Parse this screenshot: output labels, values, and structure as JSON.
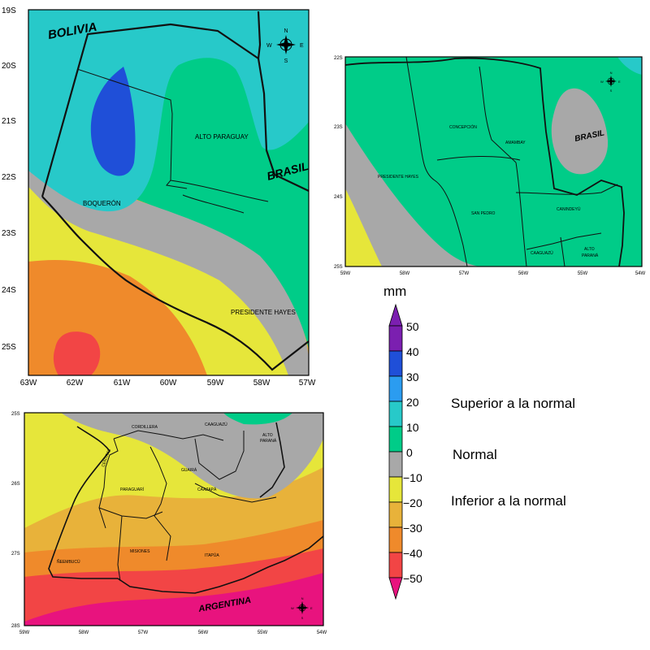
{
  "colors": {
    "plus40_50": "#7b1fb0",
    "plus30_40": "#1f4fd8",
    "plus20_30": "#2b9cf0",
    "plus10_20": "#27c9c9",
    "zero_10": "#00cc88",
    "minus10_0": "#a8a8a8",
    "minus20_10": "#e6e63a",
    "minus30_20": "#e8b23a",
    "minus40_30": "#ef8a2b",
    "minus50_40": "#f24545",
    "below_minus50": "#e8137e",
    "border": "#111111"
  },
  "map_chaco": {
    "lat_labels": [
      "19S",
      "20S",
      "21S",
      "22S",
      "23S",
      "24S",
      "25S"
    ],
    "lon_labels": [
      "63W",
      "62W",
      "61W",
      "60W",
      "59W",
      "58W",
      "57W"
    ],
    "countries": {
      "bolivia": "BOLIVIA",
      "brasil": "BRASIL"
    },
    "departments": {
      "alto_paraguay": "ALTO PARAGUAY",
      "boqueron": "BOQUERÓN",
      "presidente_hayes": "PRESIDENTE HAYES"
    },
    "compass": {
      "n": "N",
      "s": "S",
      "e": "E",
      "w": "W"
    }
  },
  "map_north": {
    "lat_labels": [
      "22S",
      "23S",
      "24S",
      "25S"
    ],
    "lon_labels": [
      "59W",
      "58W",
      "57W",
      "56W",
      "55W",
      "54W"
    ],
    "countries": {
      "brasil": "BRASIL"
    },
    "departments": {
      "concepcion": "CONCEPCIÓN",
      "amambay": "AMAMBAY",
      "presidente_hayes": "PRESIDENTE HAYES",
      "san_pedro": "SAN PEDRO",
      "canindeyu": "CANINDEYÚ",
      "caaguazu": "CAAGUAZÚ",
      "alto_parana_1": "ALTO",
      "alto_parana_2": "PARANÁ"
    },
    "compass": {
      "n": "N",
      "s": "S",
      "e": "E",
      "w": "W"
    }
  },
  "map_south": {
    "lat_labels": [
      "25S",
      "26S",
      "27S",
      "28S"
    ],
    "lon_labels": [
      "59W",
      "58W",
      "57W",
      "56W",
      "55W",
      "54W"
    ],
    "countries": {
      "argentina": "ARGENTINA"
    },
    "departments": {
      "cordillera": "CORDILLERA",
      "caaguazu": "CAAGUAZÚ",
      "central": "CENTRAL",
      "alto_parana_1": "ALTO",
      "alto_parana_2": "PARANÁ",
      "guaira": "GUAIRÁ",
      "paraguari": "PARAGUARÍ",
      "caazapa": "CAAZAPÁ",
      "neembucu": "ÑEEMBUCÚ",
      "misiones": "MISIONES",
      "itapua": "ITAPÚA"
    },
    "compass": {
      "n": "N",
      "s": "S",
      "e": "E",
      "w": "W"
    }
  },
  "colorbar": {
    "unit": "mm",
    "ticks": [
      "50",
      "40",
      "30",
      "20",
      "10",
      "0",
      "−10",
      "−20",
      "−30",
      "−40",
      "−50"
    ]
  },
  "legend": {
    "above": "Superior a la normal",
    "normal": "Normal",
    "below": "Inferior a la normal"
  }
}
